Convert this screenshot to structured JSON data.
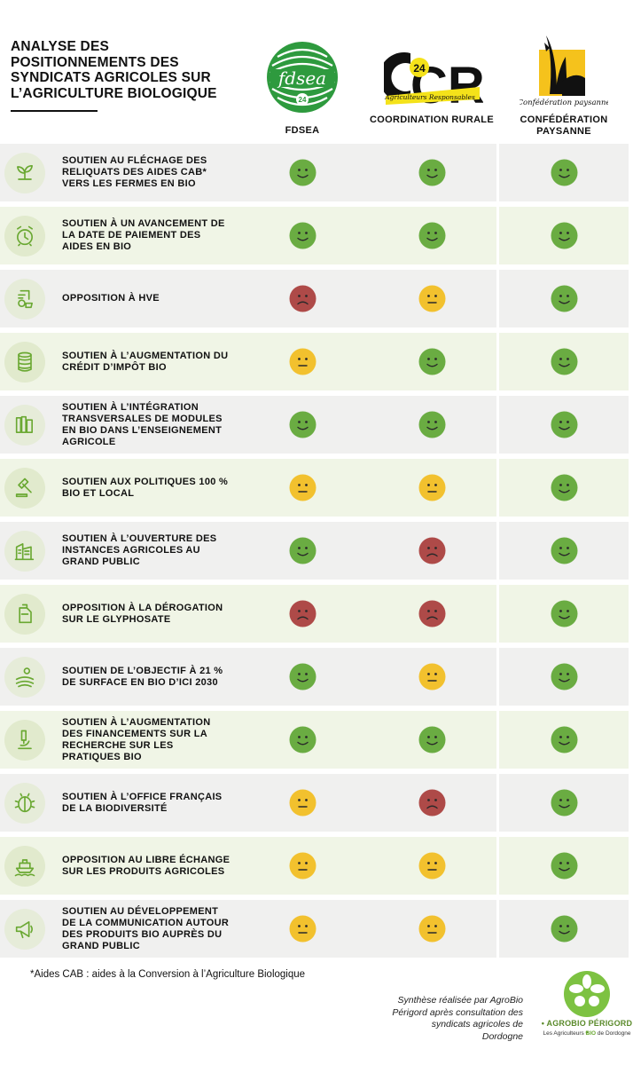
{
  "title": "ANALYSE DES POSITIONNEMENTS DES SYNDICATS AGRICOLES SUR L’AGRICULTURE BIOLOGIQUE",
  "colors": {
    "green_face": "#6aac42",
    "yellow_face": "#f2c12e",
    "red_face": "#ae4a48",
    "brand_green": "#6aa832"
  },
  "columns": [
    {
      "label": "FDSEA",
      "logo_text": "fdsea",
      "logo_num": "24"
    },
    {
      "label": "COORDINATION RURALE",
      "logo_text": "CR",
      "logo_num": "24",
      "logo_sub": "Agriculteurs Responsables"
    },
    {
      "label": "CONFÉDÉRATION PAYSANNE",
      "logo_text": "Confédération paysanne"
    }
  ],
  "rows": [
    {
      "icon": "seedling-icon",
      "label": "SOUTIEN AU FLÉCHAGE DES RELIQUATS DES AIDES CAB* VERS LES FERMES EN BIO",
      "ratings": [
        "positive",
        "positive",
        "positive"
      ]
    },
    {
      "icon": "alarm-clock-icon",
      "label": "SOUTIEN À UN AVANCEMENT DE LA DATE DE PAIEMENT DES AIDES EN BIO",
      "ratings": [
        "positive",
        "positive",
        "positive"
      ]
    },
    {
      "icon": "certificate-icon",
      "label": "OPPOSITION À HVE",
      "ratings": [
        "negative",
        "neutral",
        "positive"
      ]
    },
    {
      "icon": "coin-stack-icon",
      "label": "SOUTIEN À L’AUGMENTATION DU CRÉDIT D’IMPÔT BIO",
      "ratings": [
        "neutral",
        "positive",
        "positive"
      ]
    },
    {
      "icon": "books-icon",
      "label": "SOUTIEN À L’INTÉGRATION TRANSVERSALES DE MODULES EN BIO DANS L’ENSEIGNEMENT AGRICOLE",
      "ratings": [
        "positive",
        "positive",
        "positive"
      ]
    },
    {
      "icon": "gavel-icon",
      "label": "SOUTIEN AUX POLITIQUES 100 % BIO ET LOCAL",
      "ratings": [
        "neutral",
        "neutral",
        "positive"
      ]
    },
    {
      "icon": "buildings-icon",
      "label": "SOUTIEN À L’OUVERTURE DES INSTANCES AGRICOLES AU GRAND PUBLIC",
      "ratings": [
        "positive",
        "negative",
        "positive"
      ]
    },
    {
      "icon": "jerrycan-icon",
      "label": "OPPOSITION À LA DÉROGATION SUR LE GLYPHOSATE",
      "ratings": [
        "negative",
        "negative",
        "positive"
      ]
    },
    {
      "icon": "field-sun-icon",
      "label": "SOUTIEN DE L’OBJECTIF À 21 % DE SURFACE EN BIO D’ICI 2030",
      "ratings": [
        "positive",
        "neutral",
        "positive"
      ]
    },
    {
      "icon": "microscope-icon",
      "label": "SOUTIEN À L’AUGMENTATION DES FINANCEMENTS SUR LA RECHERCHE SUR LES PRATIQUES BIO",
      "ratings": [
        "positive",
        "positive",
        "positive"
      ]
    },
    {
      "icon": "ladybug-icon",
      "label": "SOUTIEN À L’OFFICE FRANÇAIS DE LA BIODIVERSITÉ",
      "ratings": [
        "neutral",
        "negative",
        "positive"
      ]
    },
    {
      "icon": "cargo-ship-icon",
      "label": "OPPOSITION AU LIBRE ÉCHANGE SUR LES PRODUITS AGRICOLES",
      "ratings": [
        "neutral",
        "neutral",
        "positive"
      ]
    },
    {
      "icon": "megaphone-icon",
      "label": "SOUTIEN AU DÉVELOPPEMENT DE LA COMMUNICATION AUTOUR DES PRODUITS BIO AUPRÈS DU GRAND PUBLIC",
      "ratings": [
        "neutral",
        "neutral",
        "positive"
      ]
    }
  ],
  "footnote": "*Aides CAB : aides à la Conversion à l’Agriculture Biologique",
  "credit": "Synthèse réalisée par AgroBio Périgord après consultation des syndicats agricoles de Dordogne",
  "brand": {
    "name": "AGROBIO PÉRIGORD",
    "tagline_pre": "Les Agriculteurs ",
    "tagline_bio": "BIO",
    "tagline_post": " de Dordogne"
  }
}
